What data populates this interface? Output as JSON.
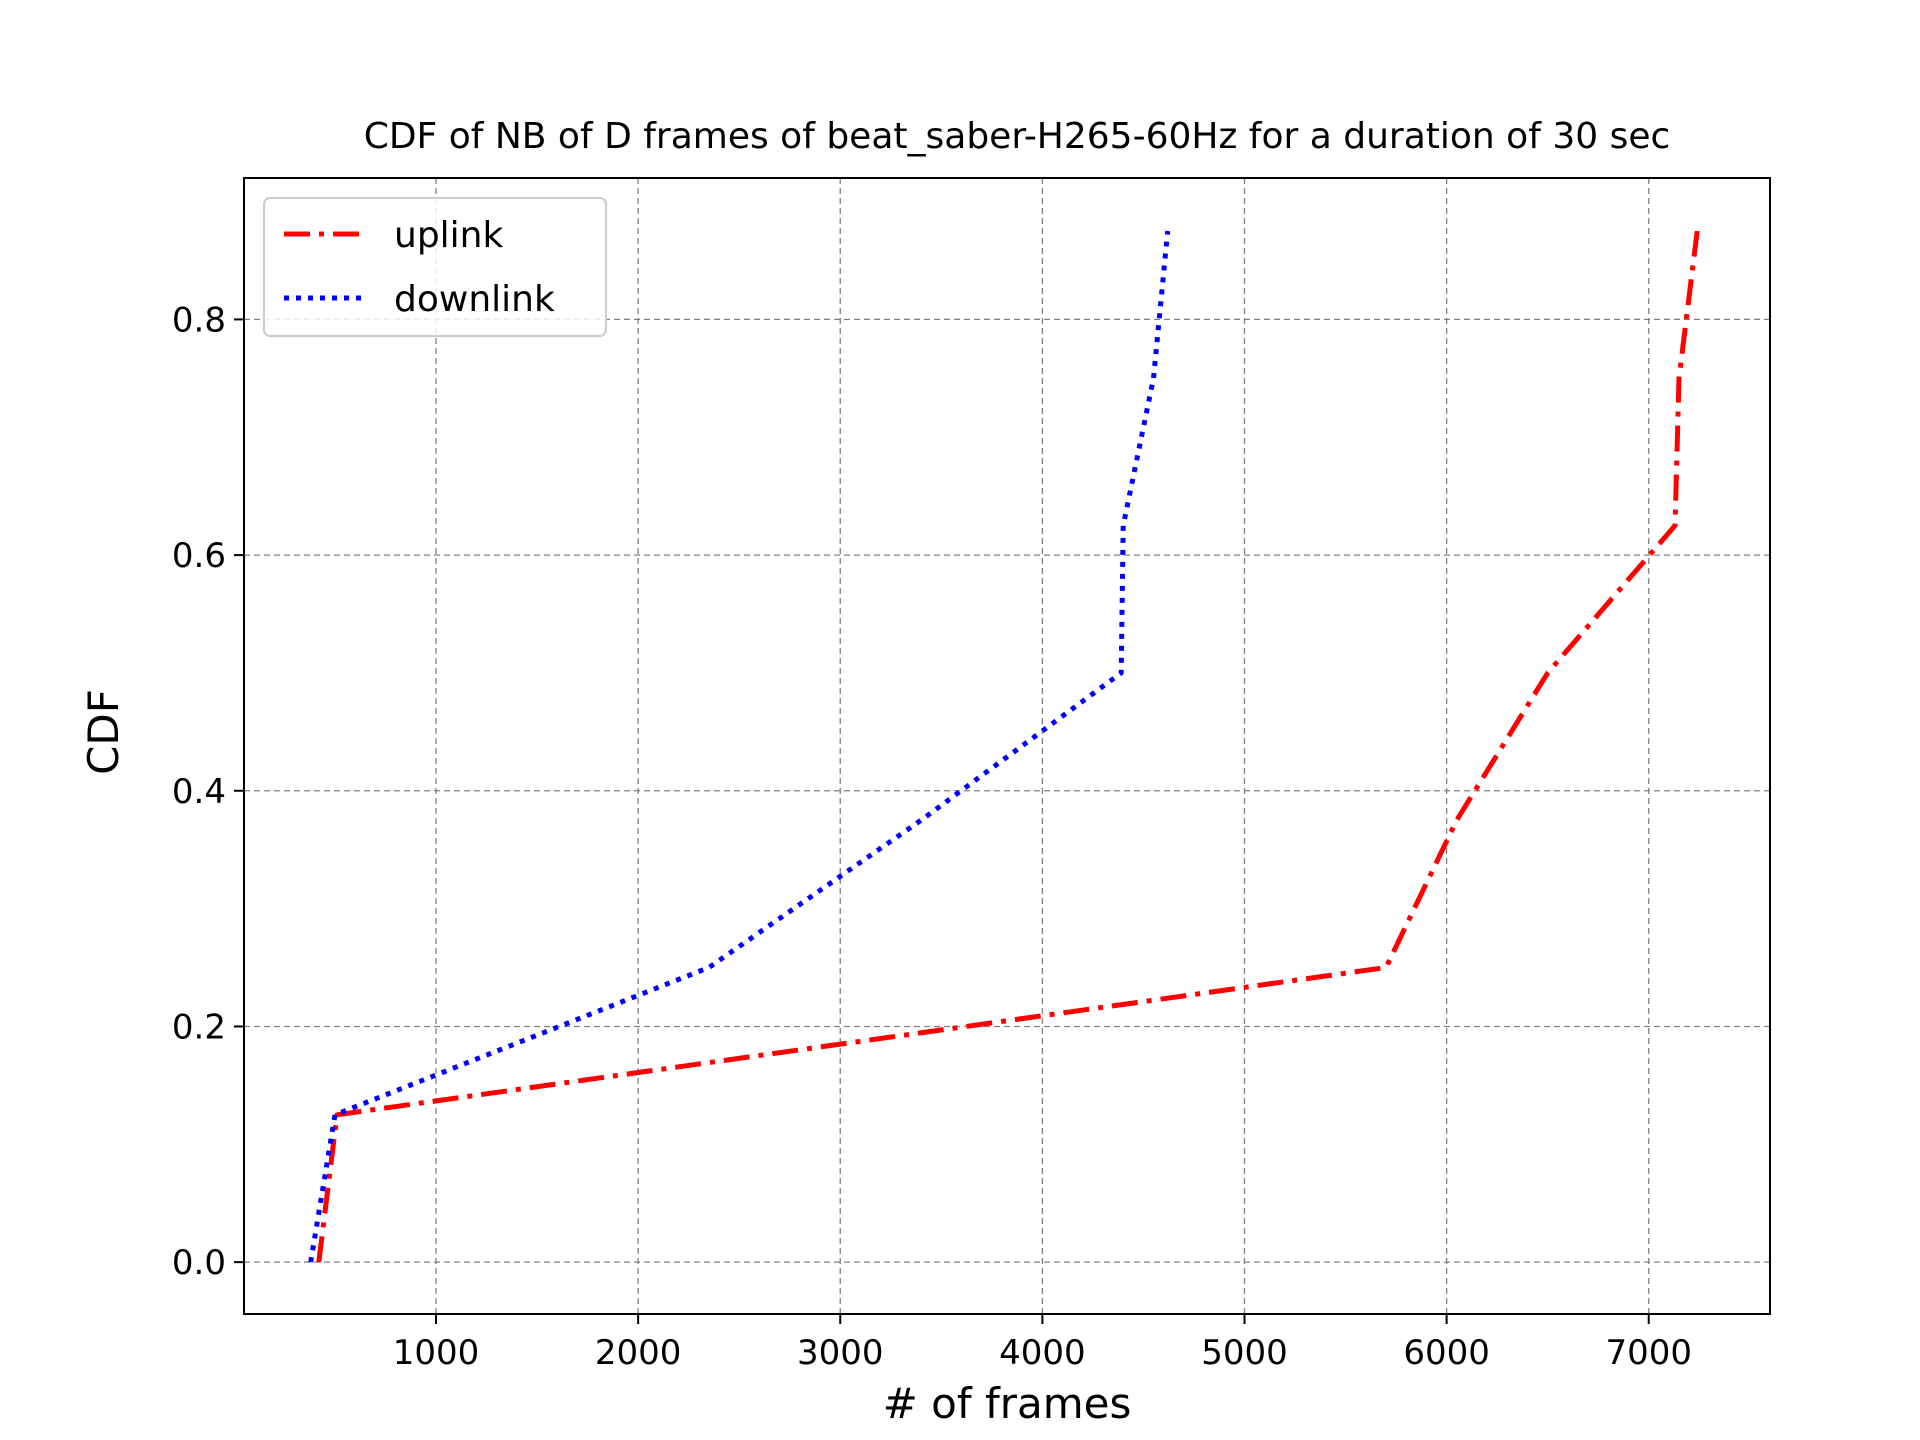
{
  "chart_data": {
    "type": "line",
    "title": "CDF of NB of D frames of beat_saber-H265-60Hz for a duration of 30 sec",
    "xlabel": "# of frames",
    "ylabel": "CDF",
    "xlim": [
      50,
      7600
    ],
    "ylim": [
      -0.044,
      0.92
    ],
    "xticks": [
      1000,
      2000,
      3000,
      4000,
      5000,
      6000,
      7000
    ],
    "yticks": [
      0.0,
      0.2,
      0.4,
      0.6,
      0.8
    ],
    "xtick_labels": [
      "1000",
      "2000",
      "3000",
      "4000",
      "5000",
      "6000",
      "7000"
    ],
    "ytick_labels": [
      "0.0",
      "0.2",
      "0.4",
      "0.6",
      "0.8"
    ],
    "grid": true,
    "legend_position": "top-left",
    "series": [
      {
        "name": "uplink",
        "color": "#ff0000",
        "style": "dashdot",
        "x": [
          420,
          510,
          5700,
          6050,
          6500,
          7130,
          7150,
          7240
        ],
        "y": [
          0.0,
          0.125,
          0.25,
          0.375,
          0.5,
          0.625,
          0.75,
          0.875
        ]
      },
      {
        "name": "downlink",
        "color": "#0000ff",
        "style": "dotted",
        "x": [
          380,
          500,
          2350,
          3400,
          4390,
          4400,
          4550,
          4620
        ],
        "y": [
          0.0,
          0.125,
          0.25,
          0.375,
          0.5,
          0.625,
          0.75,
          0.875
        ]
      }
    ]
  }
}
